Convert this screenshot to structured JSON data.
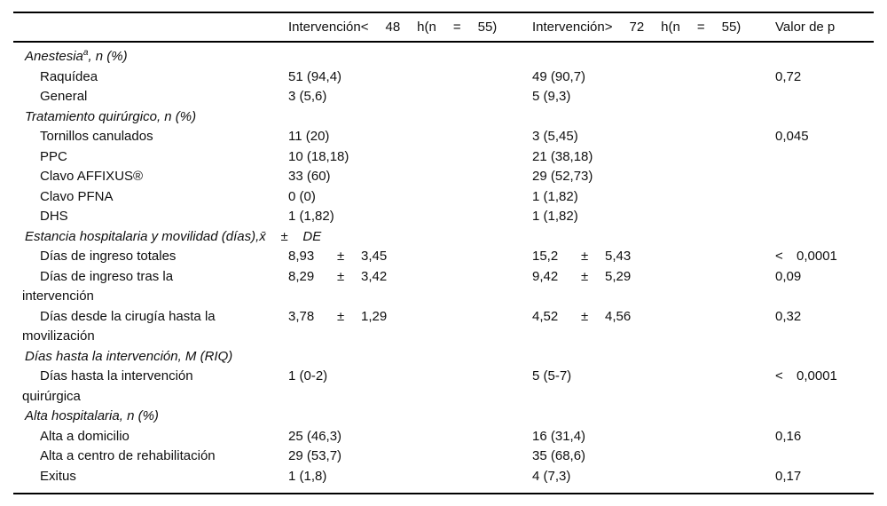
{
  "page": {
    "background": "#ffffff",
    "text_color": "#0f0f0f",
    "rule_color": "#000000"
  },
  "symbols": {
    "plus_minus": "±"
  },
  "table": {
    "header": {
      "col1": "",
      "group1_tokens": [
        "Intervención<",
        "48",
        "h(n",
        "=",
        "55)"
      ],
      "group2_tokens": [
        "Intervención>",
        "72",
        "h(n",
        "=",
        "55)"
      ],
      "p_label": "Valor de p"
    },
    "rows": [
      {
        "kind": "section",
        "text": "Anestesia",
        "sup": "a",
        "rest": ", n (%)"
      },
      {
        "kind": "item",
        "label": "Raquídea",
        "g1": "51 (94,4)",
        "g2": "49 (90,7)",
        "p": "0,72"
      },
      {
        "kind": "item",
        "label": "General",
        "g1": "3 (5,6)",
        "g2": "5 (9,3)"
      },
      {
        "kind": "section",
        "text": "Tratamiento quirúrgico, n (%)"
      },
      {
        "kind": "item",
        "label": "Tornillos canulados",
        "g1": "11 (20)",
        "g2": "3 (5,45)",
        "p": "0,045"
      },
      {
        "kind": "item",
        "label": "PPC",
        "g1": "10 (18,18)",
        "g2": "21 (38,18)"
      },
      {
        "kind": "item",
        "label": "Clavo AFFIXUS®",
        "g1": "33 (60)",
        "g2": "29 (52,73)"
      },
      {
        "kind": "item",
        "label": "Clavo PFNA",
        "g1": "0 (0)",
        "g2": "1 (1,82)"
      },
      {
        "kind": "item",
        "label": "DHS",
        "g1": "1 (1,82)",
        "g2": "1 (1,82)"
      },
      {
        "kind": "section",
        "text": "Estancia hospitalaria y movilidad (días),x̄    ±    DE"
      },
      {
        "kind": "item",
        "label": "Días de ingreso totales",
        "g1": {
          "m": "8,93",
          "sd": "3,45"
        },
        "g2": {
          "m": "15,2",
          "sd": "5,43"
        },
        "p": {
          "pre": "<",
          "v": "0,0001"
        }
      },
      {
        "kind": "item",
        "label": "Días de ingreso tras la",
        "label2": "intervención",
        "g1": {
          "m": "8,29",
          "sd": "3,42"
        },
        "g2": {
          "m": "9,42",
          "sd": "5,29"
        },
        "p": "0,09"
      },
      {
        "kind": "item",
        "label": "Días desde la cirugía hasta la",
        "label2": "movilización",
        "g1": {
          "m": "3,78",
          "sd": "1,29"
        },
        "g2": {
          "m": "4,52",
          "sd": "4,56"
        },
        "p": "0,32"
      },
      {
        "kind": "section",
        "text": "Días hasta la intervención, M (RIQ)"
      },
      {
        "kind": "item",
        "label": "Días hasta la intervención",
        "label2": "quirúrgica",
        "g1": "1 (0-2)",
        "g2": "5 (5-7)",
        "p": {
          "pre": "<",
          "v": "0,0001"
        }
      },
      {
        "kind": "section",
        "text": "Alta hospitalaria, n (%)"
      },
      {
        "kind": "item",
        "label": "Alta a domicilio",
        "g1": "25 (46,3)",
        "g2": "16 (31,4)",
        "p": "0,16"
      },
      {
        "kind": "item",
        "label": "Alta a centro de rehabilitación",
        "g1": "29 (53,7)",
        "g2": "35 (68,6)"
      },
      {
        "kind": "item",
        "label": "Exitus",
        "g1": "1 (1,8)",
        "g2": "4 (7,3)",
        "p": "0,17"
      }
    ]
  }
}
